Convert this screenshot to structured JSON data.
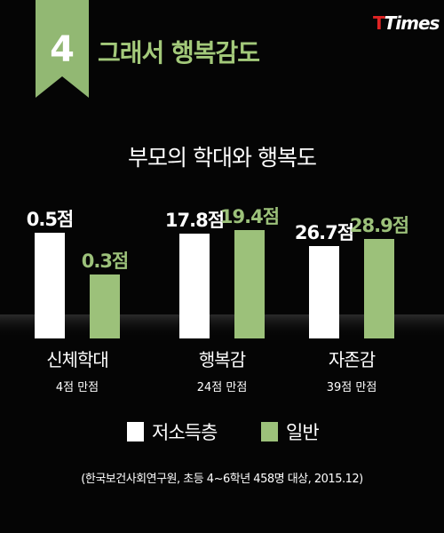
{
  "header": {
    "number": "4",
    "title": "그래서 행복감도",
    "brand_t": "T",
    "brand_times": "Times"
  },
  "colors": {
    "low_income": "#ffffff",
    "general": "#9cc17a",
    "header_green": "#a3c97a",
    "ribbon_green": "#92b873",
    "brand_red": "#e02424",
    "background": "#050505"
  },
  "chart_data": {
    "type": "bar",
    "title": "부모의 학대와 행복도",
    "categories": [
      {
        "label": "신체학대",
        "sub": "4점 만점"
      },
      {
        "label": "행복감",
        "sub": "24점 만점"
      },
      {
        "label": "자존감",
        "sub": "39점 만점"
      }
    ],
    "series": [
      {
        "name": "저소득층",
        "values": [
          0.5,
          17.8,
          26.7
        ],
        "labels": [
          "0.5점",
          "17.8점",
          "26.7점"
        ],
        "color": "#ffffff"
      },
      {
        "name": "일반",
        "values": [
          0.3,
          19.4,
          28.9
        ],
        "labels": [
          "0.3점",
          "19.4점",
          "28.9점"
        ],
        "color": "#9cc17a"
      }
    ],
    "legend_position": "bottom-center",
    "grid": false
  },
  "legend": {
    "low": "저소득층",
    "general": "일반"
  },
  "source": "(한국보건사회연구원, 초등 4~6학년 458명 대상, 2015.12)"
}
